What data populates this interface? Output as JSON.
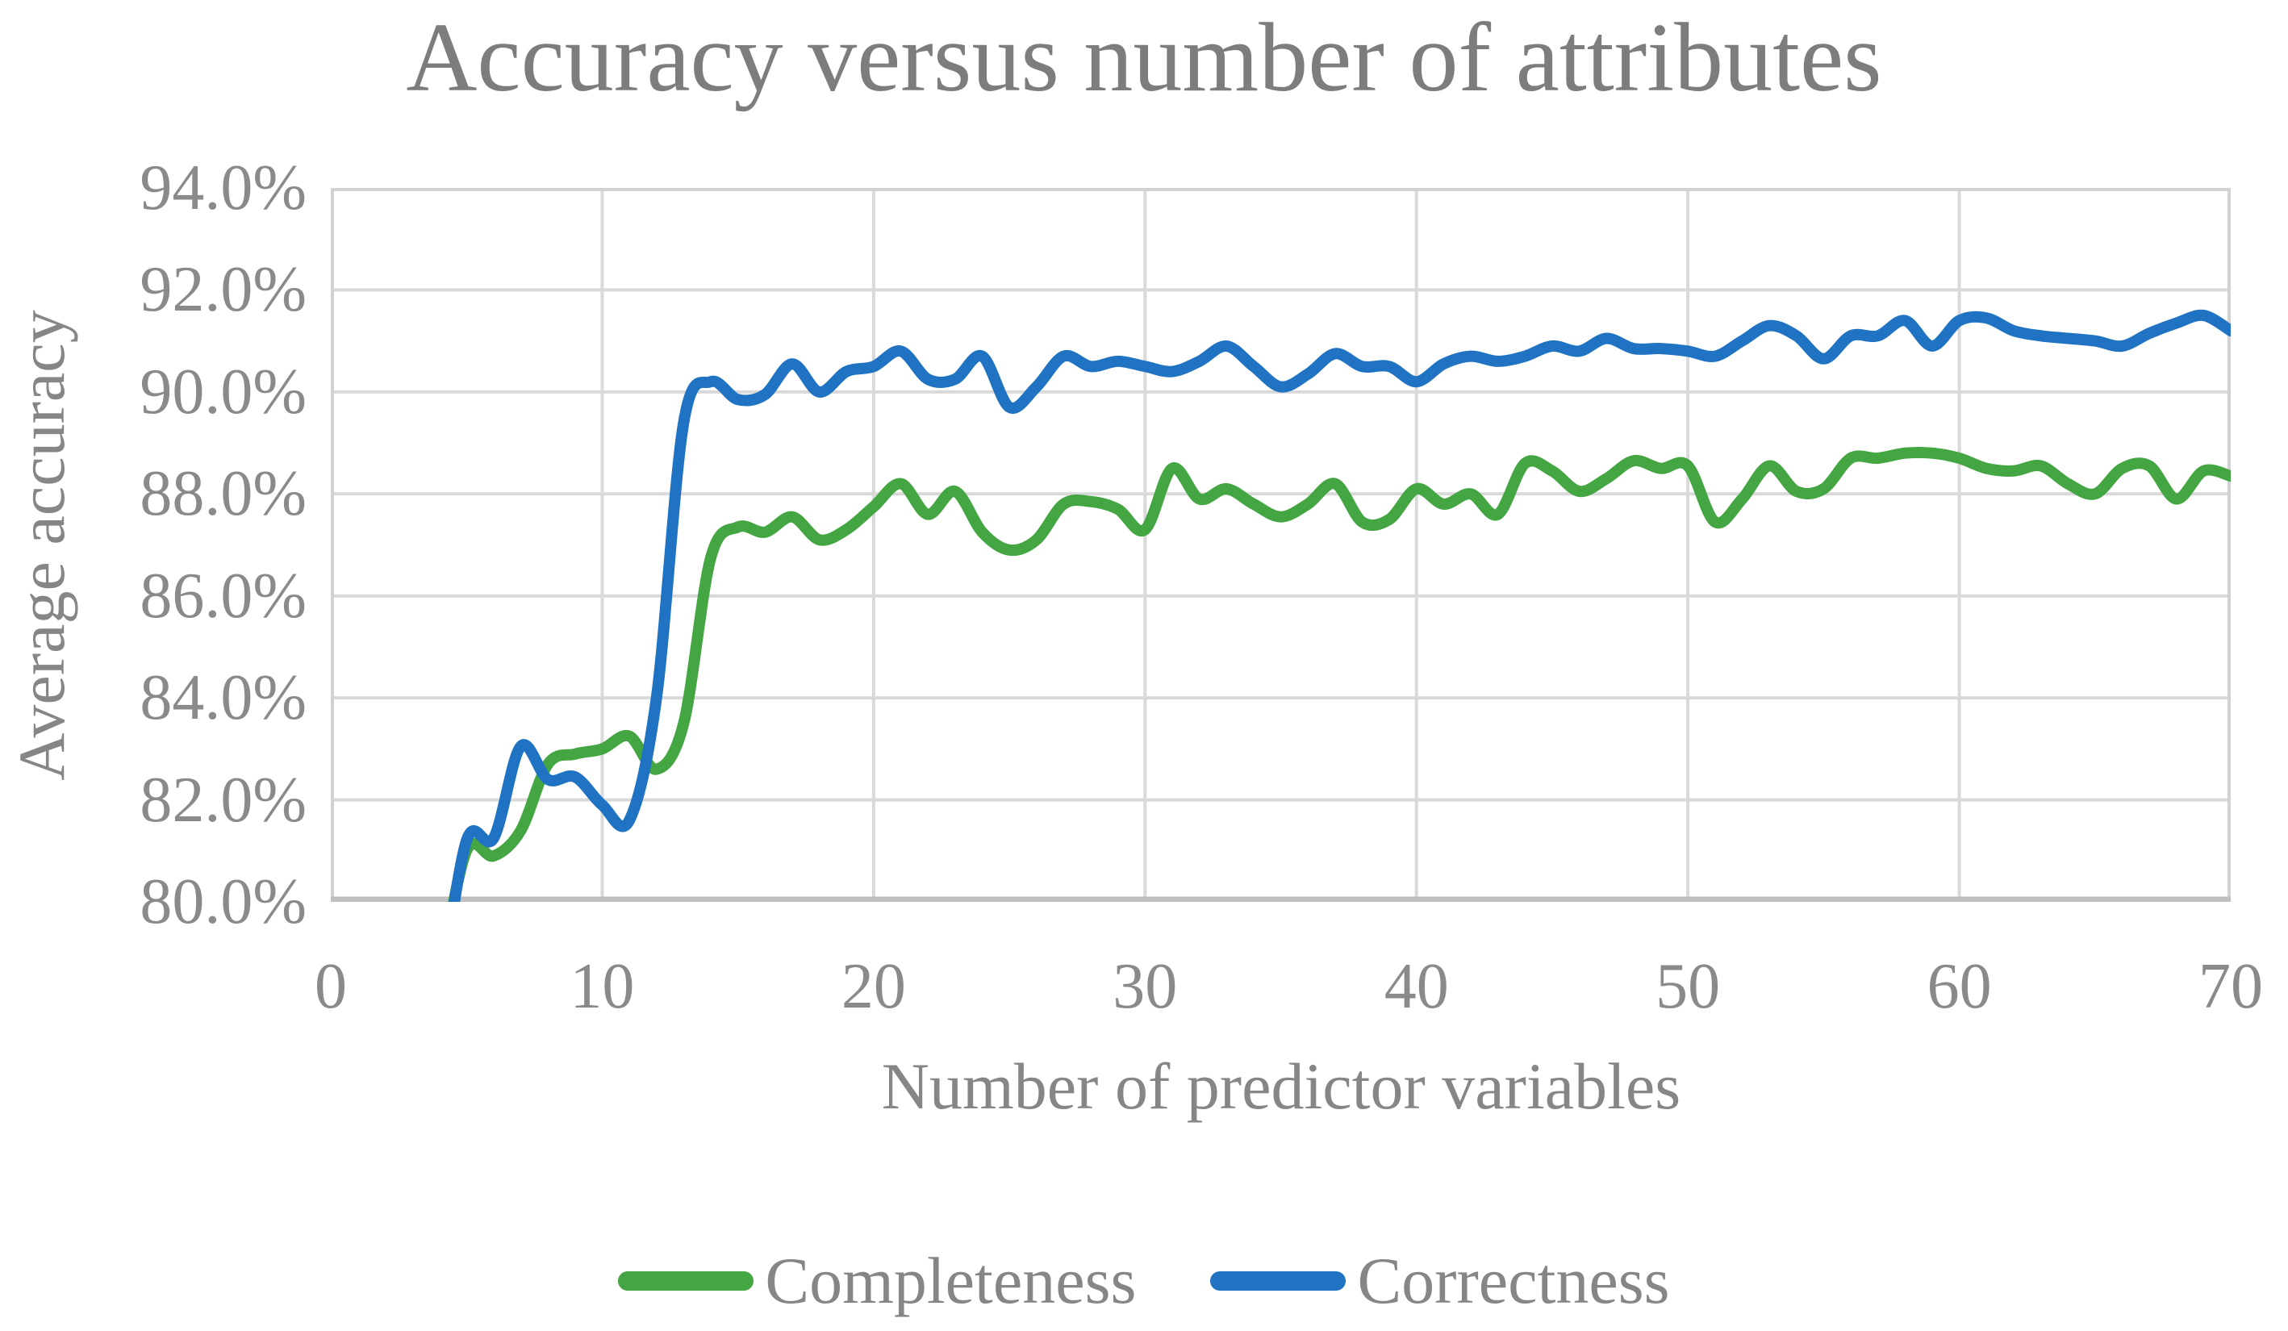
{
  "title": "Accuracy versus number of attributes",
  "axes": {
    "y_title": "Average accuracy",
    "x_title": "Number of predictor variables",
    "y_tick_labels": [
      "94.0%",
      "92.0%",
      "90.0%",
      "88.0%",
      "86.0%",
      "84.0%",
      "82.0%",
      "80.0%"
    ],
    "x_tick_labels": [
      "0",
      "10",
      "20",
      "30",
      "40",
      "50",
      "60",
      "70"
    ]
  },
  "legend": [
    {
      "label": "Completeness",
      "color": "#44a642"
    },
    {
      "label": "Correctness",
      "color": "#1f73c2"
    }
  ],
  "colors": {
    "gridline": "#d9d9d9",
    "plot_border": "#d2d2d2",
    "axis_line": "#bfbfbf",
    "text": "#868686",
    "title_text": "#7d7d7d",
    "completeness": "#44a642",
    "correctness": "#1f73c2"
  },
  "chart_data": {
    "type": "line",
    "title": "Accuracy versus number of attributes",
    "xlabel": "Number of predictor variables",
    "ylabel": "Average accuracy",
    "xlim": [
      0,
      70
    ],
    "ylim_percent": [
      80.0,
      94.0
    ],
    "y_gridline_step_percent": 2.0,
    "grid": true,
    "legend_position": "bottom",
    "line_style": "smooth",
    "x": [
      4,
      5,
      6,
      7,
      8,
      9,
      10,
      11,
      12,
      13,
      14,
      15,
      16,
      17,
      18,
      19,
      20,
      21,
      22,
      23,
      24,
      25,
      26,
      27,
      28,
      29,
      30,
      31,
      32,
      33,
      34,
      35,
      36,
      37,
      38,
      39,
      40,
      41,
      42,
      43,
      44,
      45,
      46,
      47,
      48,
      49,
      50,
      51,
      52,
      53,
      54,
      55,
      56,
      57,
      58,
      59,
      60,
      61,
      62,
      63,
      64,
      65,
      66,
      67,
      68,
      69,
      70
    ],
    "series": [
      {
        "name": "Completeness",
        "color": "#44a642",
        "values": [
          78.5,
          81.0,
          80.9,
          81.4,
          82.7,
          82.9,
          83.0,
          83.25,
          82.6,
          83.5,
          86.75,
          87.35,
          87.25,
          87.55,
          87.1,
          87.3,
          87.75,
          88.2,
          87.6,
          88.05,
          87.25,
          86.9,
          87.1,
          87.8,
          87.85,
          87.7,
          87.3,
          88.5,
          87.9,
          88.1,
          87.8,
          87.55,
          87.8,
          88.2,
          87.45,
          87.5,
          88.1,
          87.8,
          88.0,
          87.6,
          88.6,
          88.45,
          88.05,
          88.3,
          88.65,
          88.5,
          88.55,
          87.45,
          87.9,
          88.55,
          88.05,
          88.1,
          88.7,
          88.7,
          88.8,
          88.8,
          88.7,
          88.5,
          88.45,
          88.55,
          88.2,
          88.0,
          88.5,
          88.55,
          87.9,
          88.45,
          88.35
        ]
      },
      {
        "name": "Correctness",
        "color": "#1f73c2",
        "values": [
          78.0,
          81.2,
          81.25,
          83.05,
          82.4,
          82.45,
          81.9,
          81.6,
          84.0,
          89.4,
          90.2,
          89.85,
          89.95,
          90.55,
          90.0,
          90.4,
          90.5,
          90.8,
          90.25,
          90.25,
          90.7,
          89.7,
          90.1,
          90.7,
          90.5,
          90.6,
          90.5,
          90.4,
          90.6,
          90.9,
          90.5,
          90.1,
          90.35,
          90.75,
          90.5,
          90.5,
          90.2,
          90.55,
          90.7,
          90.6,
          90.7,
          90.9,
          90.8,
          91.05,
          90.85,
          90.85,
          90.8,
          90.7,
          91.0,
          91.3,
          91.1,
          90.65,
          91.1,
          91.1,
          91.4,
          90.9,
          91.4,
          91.45,
          91.2,
          91.1,
          91.05,
          91.0,
          90.9,
          91.15,
          91.35,
          91.5,
          91.2
        ]
      }
    ]
  }
}
